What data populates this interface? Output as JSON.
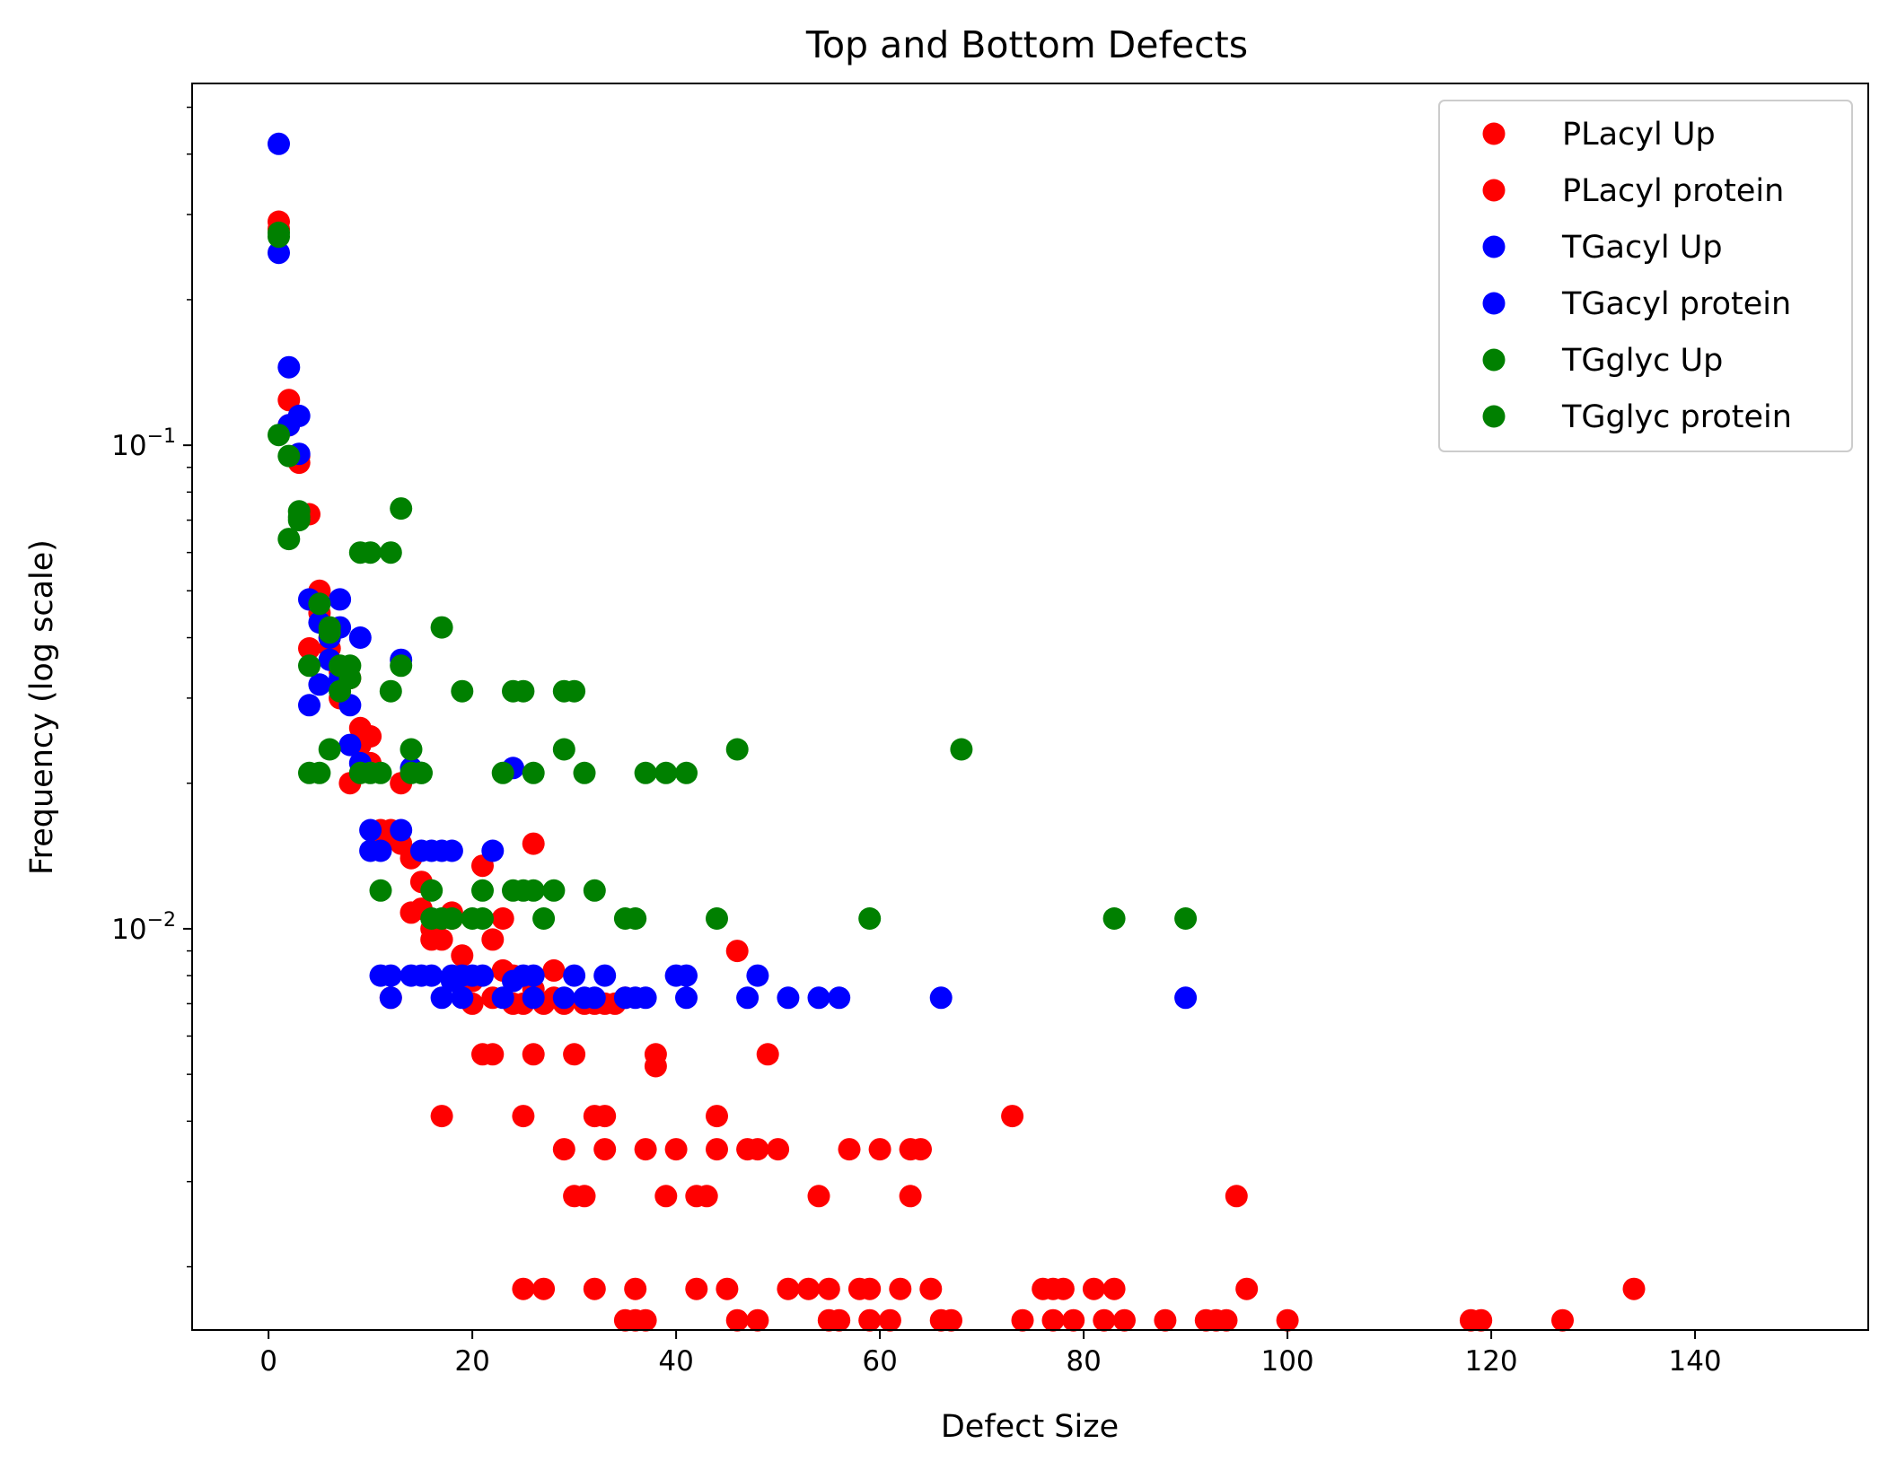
{
  "chart_data": {
    "type": "scatter",
    "title": "Top and Bottom Defects",
    "xlabel": "Defect Size",
    "ylabel": "Frequency (log scale)",
    "xlim": [
      -7.5,
      157
    ],
    "ylim": [
      0.00148,
      0.56
    ],
    "yscale": "log",
    "xticks": [
      "0",
      "20",
      "40",
      "60",
      "80",
      "100",
      "120",
      "140"
    ],
    "xtick_values": [
      0,
      20,
      40,
      60,
      80,
      100,
      120,
      140
    ],
    "yticks": [
      {
        "value": 0.1,
        "base": "10",
        "exp": "−1"
      },
      {
        "value": 0.01,
        "base": "10",
        "exp": "−2"
      }
    ],
    "grid": false,
    "legend_position": "top-right",
    "series": [
      {
        "name": "PLacyl Up",
        "color": "#ff0000",
        "points": [
          [
            1,
            0.29
          ],
          [
            2,
            0.124
          ],
          [
            3,
            0.092
          ],
          [
            4,
            0.072
          ],
          [
            5,
            0.05
          ],
          [
            6,
            0.04
          ],
          [
            4,
            0.038
          ],
          [
            7,
            0.034
          ],
          [
            8,
            0.033
          ],
          [
            9,
            0.026
          ],
          [
            10,
            0.025
          ],
          [
            8,
            0.02
          ],
          [
            11,
            0.016
          ],
          [
            12,
            0.016
          ],
          [
            13,
            0.02
          ],
          [
            14,
            0.014
          ],
          [
            15,
            0.0125
          ],
          [
            16,
            0.0095
          ],
          [
            17,
            0.0095
          ],
          [
            14,
            0.0108
          ],
          [
            18,
            0.0108
          ],
          [
            19,
            0.0088
          ],
          [
            20,
            0.007
          ],
          [
            21,
            0.0055
          ],
          [
            22,
            0.0055
          ],
          [
            23,
            0.0082
          ],
          [
            24,
            0.007
          ],
          [
            26,
            0.0055
          ],
          [
            27,
            0.007
          ],
          [
            28,
            0.0082
          ],
          [
            29,
            0.007
          ],
          [
            30,
            0.0055
          ],
          [
            25,
            0.007
          ],
          [
            31,
            0.007
          ],
          [
            32,
            0.007
          ],
          [
            33,
            0.007
          ],
          [
            34,
            0.007
          ],
          [
            12,
            0.0072
          ],
          [
            17,
            0.0041
          ],
          [
            25,
            0.0041
          ],
          [
            32,
            0.0041
          ],
          [
            33,
            0.0041
          ],
          [
            29,
            0.0035
          ],
          [
            33,
            0.0035
          ],
          [
            37,
            0.0035
          ],
          [
            40,
            0.0035
          ],
          [
            44,
            0.0035
          ],
          [
            47,
            0.0035
          ],
          [
            48,
            0.0035
          ],
          [
            50,
            0.0035
          ],
          [
            44,
            0.0041
          ],
          [
            49,
            0.0055
          ],
          [
            38,
            0.0055
          ],
          [
            57,
            0.0035
          ],
          [
            60,
            0.0035
          ],
          [
            63,
            0.0035
          ],
          [
            64,
            0.0035
          ],
          [
            73,
            0.0041
          ],
          [
            30,
            0.0028
          ],
          [
            31,
            0.0028
          ],
          [
            39,
            0.0028
          ],
          [
            42,
            0.0028
          ],
          [
            43,
            0.0028
          ],
          [
            54,
            0.0028
          ],
          [
            63,
            0.0028
          ],
          [
            95,
            0.0028
          ],
          [
            25,
            0.0018
          ],
          [
            27,
            0.0018
          ],
          [
            32,
            0.0018
          ],
          [
            36,
            0.0018
          ],
          [
            42,
            0.0018
          ],
          [
            45,
            0.0018
          ],
          [
            51,
            0.0018
          ],
          [
            53,
            0.0018
          ],
          [
            55,
            0.0018
          ],
          [
            58,
            0.0018
          ],
          [
            59,
            0.0018
          ],
          [
            62,
            0.0018
          ],
          [
            65,
            0.0018
          ],
          [
            76,
            0.0018
          ],
          [
            77,
            0.0018
          ],
          [
            78,
            0.0018
          ],
          [
            81,
            0.0018
          ],
          [
            83,
            0.0018
          ],
          [
            96,
            0.0018
          ],
          [
            134,
            0.0018
          ],
          [
            35,
            0.00155
          ],
          [
            36,
            0.00155
          ],
          [
            37,
            0.00155
          ],
          [
            46,
            0.00155
          ],
          [
            48,
            0.00155
          ],
          [
            55,
            0.00155
          ],
          [
            56,
            0.00155
          ],
          [
            59,
            0.00155
          ],
          [
            61,
            0.00155
          ],
          [
            66,
            0.00155
          ],
          [
            67,
            0.00155
          ],
          [
            74,
            0.00155
          ],
          [
            77,
            0.00155
          ],
          [
            79,
            0.00155
          ],
          [
            82,
            0.00155
          ],
          [
            84,
            0.00155
          ],
          [
            88,
            0.00155
          ],
          [
            92,
            0.00155
          ],
          [
            93,
            0.00155
          ],
          [
            94,
            0.00155
          ],
          [
            100,
            0.00155
          ],
          [
            118,
            0.00155
          ],
          [
            119,
            0.00155
          ],
          [
            127,
            0.00155
          ],
          [
            26,
            0.015
          ],
          [
            21,
            0.0135
          ],
          [
            23,
            0.0105
          ]
        ]
      },
      {
        "name": "PLacyl protein",
        "color": "#ff0000",
        "points": [
          [
            1,
            0.28
          ],
          [
            2,
            0.11
          ],
          [
            3,
            0.095
          ],
          [
            5,
            0.045
          ],
          [
            6,
            0.038
          ],
          [
            7,
            0.03
          ],
          [
            9,
            0.024
          ],
          [
            10,
            0.022
          ],
          [
            11,
            0.015
          ],
          [
            13,
            0.015
          ],
          [
            15,
            0.011
          ],
          [
            16,
            0.01
          ],
          [
            18,
            0.0105
          ],
          [
            20,
            0.0078
          ],
          [
            22,
            0.0072
          ],
          [
            24,
            0.008
          ],
          [
            26,
            0.0075
          ],
          [
            28,
            0.0072
          ],
          [
            35,
            0.0072
          ],
          [
            46,
            0.009
          ],
          [
            38,
            0.0052
          ],
          [
            22,
            0.0095
          ]
        ]
      },
      {
        "name": "TGacyl Up",
        "color": "#0000ff",
        "points": [
          [
            1,
            0.42
          ],
          [
            1,
            0.25
          ],
          [
            2,
            0.145
          ],
          [
            3,
            0.115
          ],
          [
            3,
            0.096
          ],
          [
            4,
            0.048
          ],
          [
            5,
            0.043
          ],
          [
            6,
            0.04
          ],
          [
            7,
            0.048
          ],
          [
            7,
            0.042
          ],
          [
            5,
            0.032
          ],
          [
            4,
            0.029
          ],
          [
            8,
            0.029
          ],
          [
            9,
            0.04
          ],
          [
            13,
            0.036
          ],
          [
            8,
            0.024
          ],
          [
            9,
            0.022
          ],
          [
            10,
            0.016
          ],
          [
            10,
            0.0145
          ],
          [
            11,
            0.0145
          ],
          [
            13,
            0.016
          ],
          [
            15,
            0.0145
          ],
          [
            16,
            0.0145
          ],
          [
            18,
            0.0145
          ],
          [
            22,
            0.0145
          ],
          [
            24,
            0.0215
          ],
          [
            14,
            0.0215
          ],
          [
            11,
            0.008
          ],
          [
            12,
            0.008
          ],
          [
            14,
            0.008
          ],
          [
            15,
            0.008
          ],
          [
            16,
            0.008
          ],
          [
            18,
            0.008
          ],
          [
            19,
            0.008
          ],
          [
            20,
            0.008
          ],
          [
            12,
            0.0072
          ],
          [
            17,
            0.0072
          ],
          [
            19,
            0.0072
          ],
          [
            23,
            0.0072
          ],
          [
            25,
            0.008
          ],
          [
            26,
            0.008
          ],
          [
            30,
            0.008
          ],
          [
            33,
            0.008
          ],
          [
            40,
            0.008
          ],
          [
            41,
            0.008
          ],
          [
            48,
            0.008
          ],
          [
            26,
            0.0072
          ],
          [
            29,
            0.0072
          ],
          [
            31,
            0.0072
          ],
          [
            32,
            0.0072
          ],
          [
            36,
            0.0072
          ],
          [
            37,
            0.0072
          ],
          [
            41,
            0.0072
          ],
          [
            47,
            0.0072
          ],
          [
            51,
            0.0072
          ],
          [
            54,
            0.0072
          ],
          [
            56,
            0.0072
          ],
          [
            66,
            0.0072
          ],
          [
            90,
            0.0072
          ]
        ]
      },
      {
        "name": "TGacyl protein",
        "color": "#0000ff",
        "points": [
          [
            2,
            0.11
          ],
          [
            6,
            0.036
          ],
          [
            7,
            0.033
          ],
          [
            17,
            0.0145
          ],
          [
            18,
            0.0078
          ],
          [
            21,
            0.008
          ],
          [
            24,
            0.0078
          ],
          [
            35,
            0.0072
          ]
        ]
      },
      {
        "name": "TGglyc Up",
        "color": "#008000",
        "points": [
          [
            1,
            0.275
          ],
          [
            1,
            0.105
          ],
          [
            2,
            0.095
          ],
          [
            3,
            0.073
          ],
          [
            3,
            0.071
          ],
          [
            2,
            0.064
          ],
          [
            5,
            0.047
          ],
          [
            6,
            0.042
          ],
          [
            4,
            0.035
          ],
          [
            7,
            0.035
          ],
          [
            8,
            0.035
          ],
          [
            7,
            0.031
          ],
          [
            9,
            0.06
          ],
          [
            10,
            0.06
          ],
          [
            12,
            0.06
          ],
          [
            13,
            0.074
          ],
          [
            17,
            0.042
          ],
          [
            13,
            0.035
          ],
          [
            12,
            0.031
          ],
          [
            19,
            0.031
          ],
          [
            24,
            0.031
          ],
          [
            25,
            0.031
          ],
          [
            29,
            0.031
          ],
          [
            30,
            0.031
          ],
          [
            6,
            0.0235
          ],
          [
            14,
            0.0235
          ],
          [
            29,
            0.0235
          ],
          [
            46,
            0.0235
          ],
          [
            68,
            0.0235
          ],
          [
            4,
            0.021
          ],
          [
            5,
            0.021
          ],
          [
            9,
            0.021
          ],
          [
            10,
            0.021
          ],
          [
            11,
            0.021
          ],
          [
            14,
            0.021
          ],
          [
            15,
            0.021
          ],
          [
            23,
            0.021
          ],
          [
            26,
            0.021
          ],
          [
            31,
            0.021
          ],
          [
            37,
            0.021
          ],
          [
            39,
            0.021
          ],
          [
            41,
            0.021
          ],
          [
            11,
            0.012
          ],
          [
            16,
            0.012
          ],
          [
            21,
            0.012
          ],
          [
            24,
            0.012
          ],
          [
            26,
            0.012
          ],
          [
            28,
            0.012
          ],
          [
            32,
            0.012
          ],
          [
            16,
            0.0105
          ],
          [
            18,
            0.0105
          ],
          [
            20,
            0.0105
          ],
          [
            21,
            0.0105
          ],
          [
            27,
            0.0105
          ],
          [
            35,
            0.0105
          ],
          [
            36,
            0.0105
          ],
          [
            44,
            0.0105
          ],
          [
            59,
            0.0105
          ],
          [
            83,
            0.0105
          ],
          [
            90,
            0.0105
          ]
        ]
      },
      {
        "name": "TGglyc protein",
        "color": "#008000",
        "points": [
          [
            1,
            0.27
          ],
          [
            3,
            0.07
          ],
          [
            6,
            0.041
          ],
          [
            8,
            0.033
          ],
          [
            15,
            0.021
          ],
          [
            17,
            0.0105
          ],
          [
            25,
            0.012
          ]
        ]
      }
    ]
  }
}
